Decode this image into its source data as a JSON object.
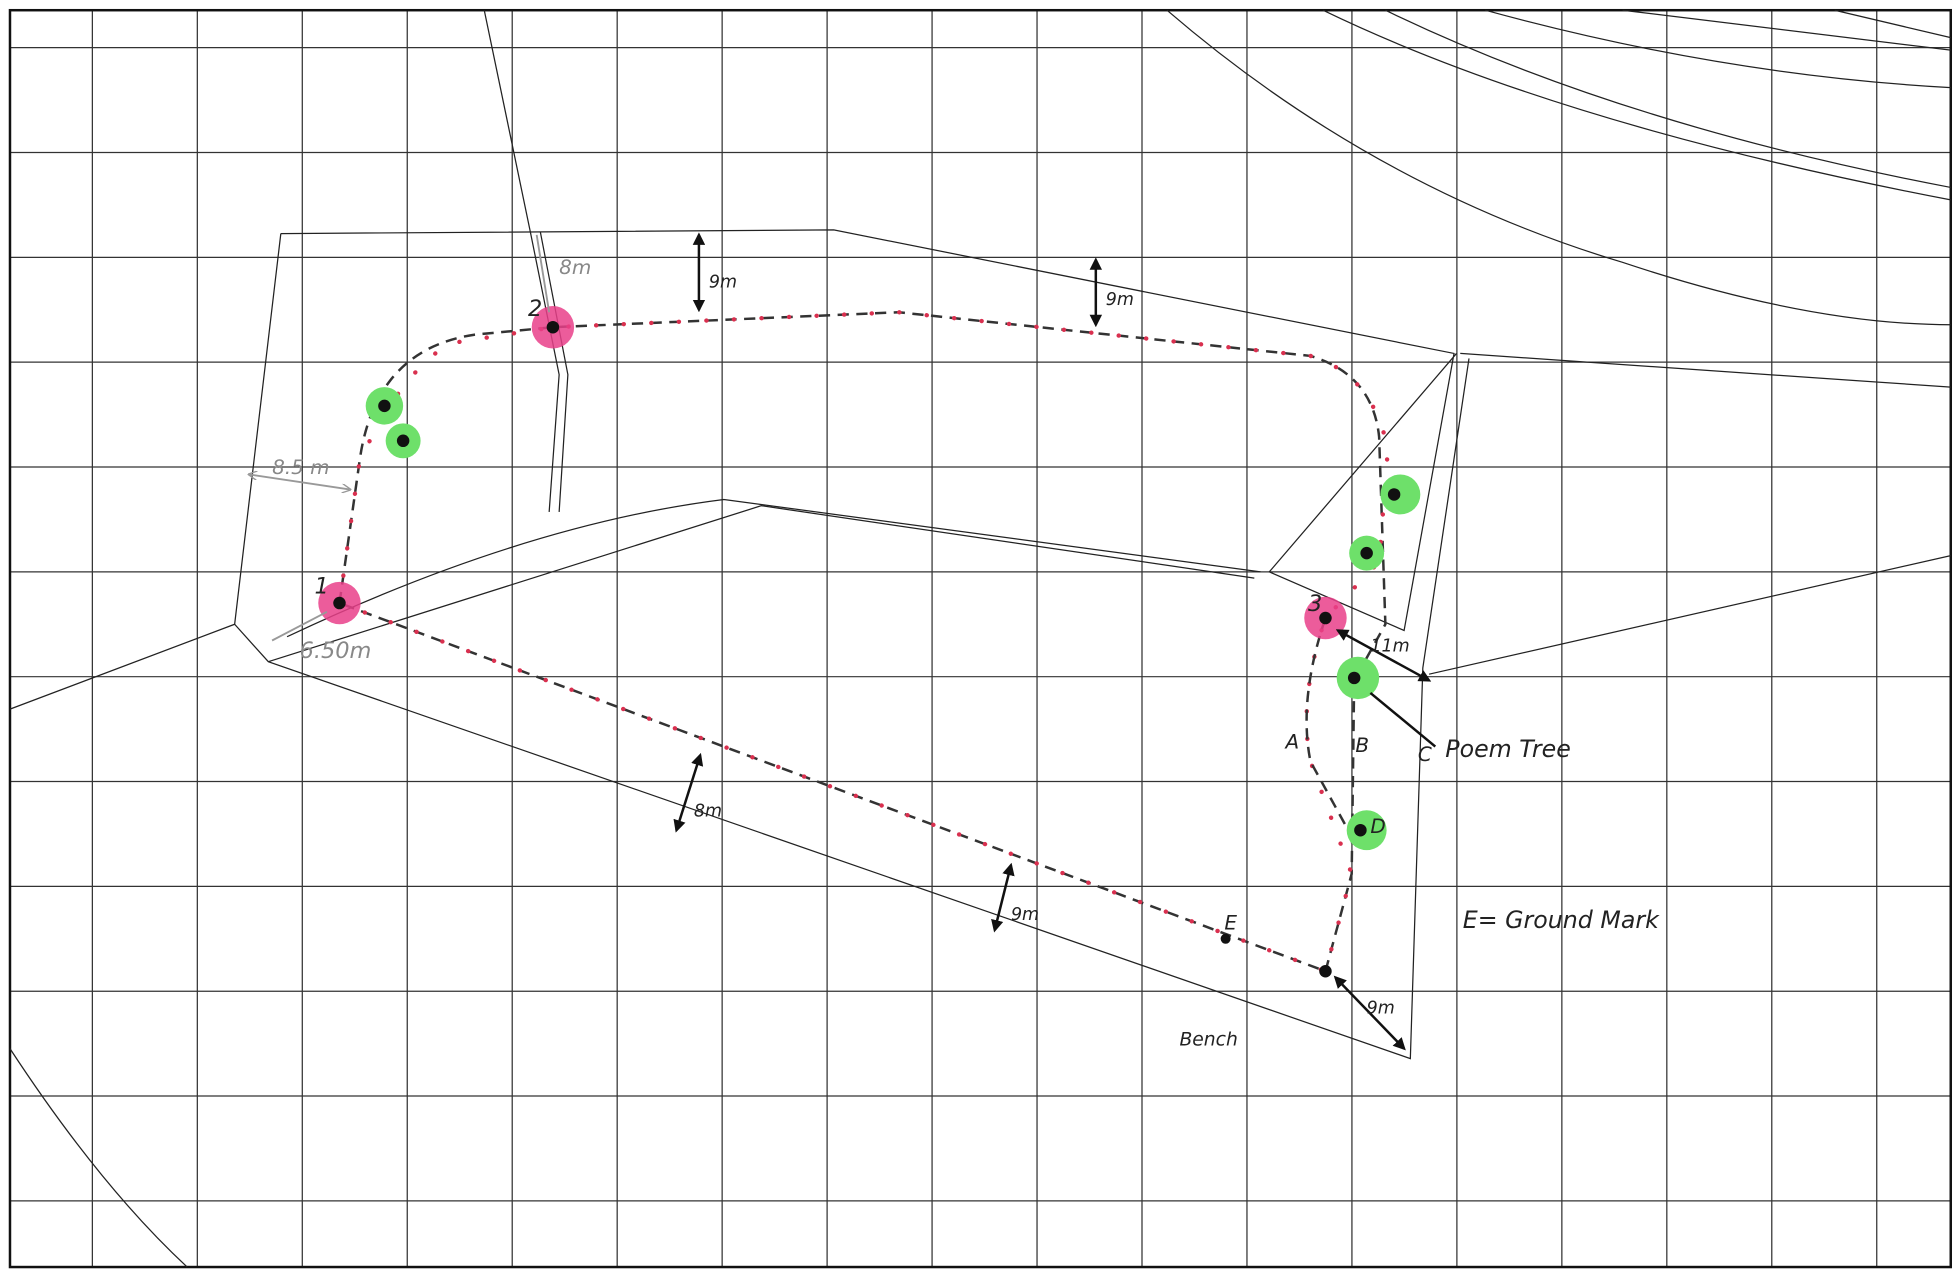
{
  "markers": [
    "1",
    "2",
    "3"
  ],
  "points": [
    "A",
    "B",
    "C",
    "D",
    "E"
  ],
  "measurements": [
    "8m",
    "9m",
    "9m",
    "8.5 m",
    "6.50m",
    "8m",
    "9m",
    "11m",
    "9m"
  ],
  "annotations": {
    "poem_tree": "Poem Tree",
    "legend": "E= Ground Mark",
    "bench": "Bench"
  }
}
